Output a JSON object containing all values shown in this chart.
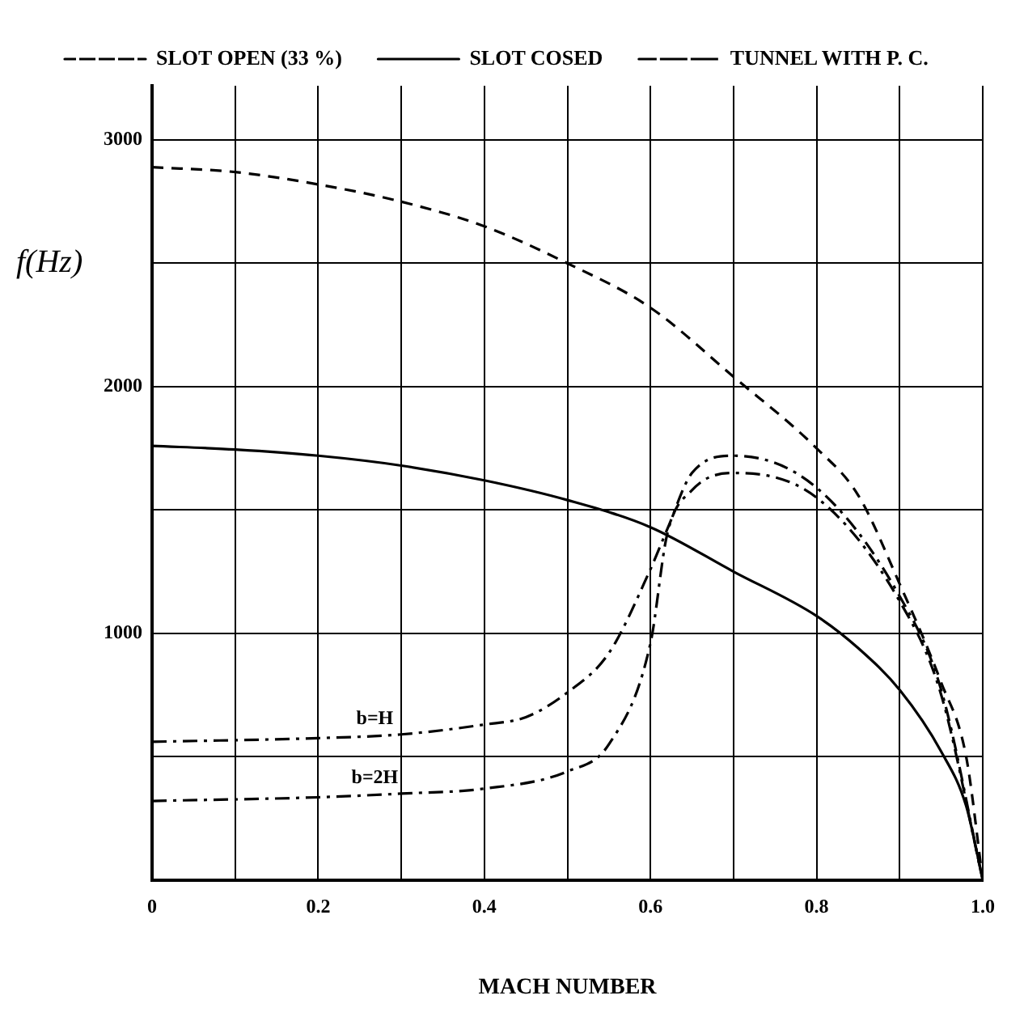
{
  "chart_data": {
    "type": "line",
    "xlabel": "MACH NUMBER",
    "ylabel": "f(Hz)",
    "x": [
      0,
      0.1,
      0.2,
      0.3,
      0.4,
      0.5,
      0.6,
      0.7,
      0.8,
      0.85,
      0.9,
      0.95,
      0.98,
      1.0
    ],
    "series": [
      {
        "name": "SLOT OPEN (33 %)",
        "color": "#000000",
        "line_style": "dashed",
        "values": [
          2890,
          2870,
          2820,
          2750,
          2650,
          2500,
          2320,
          2040,
          1750,
          1560,
          1200,
          800,
          500,
          0
        ]
      },
      {
        "name": "SLOT COSED",
        "color": "#000000",
        "line_style": "solid",
        "values": [
          1760,
          1745,
          1720,
          1680,
          1620,
          1540,
          1430,
          1250,
          1070,
          940,
          770,
          520,
          300,
          0
        ]
      },
      {
        "name": "TUNNEL WITH P. C.",
        "color": "#000000",
        "line_style": "dashdot",
        "x": [
          0,
          0.2,
          0.3,
          0.4,
          0.45,
          0.5,
          0.55,
          0.6,
          0.62,
          0.65,
          0.7,
          0.8,
          0.9,
          0.95,
          1.0
        ],
        "values": [
          560,
          575,
          590,
          630,
          660,
          760,
          920,
          1260,
          1420,
          1650,
          1720,
          1590,
          1150,
          770,
          0
        ]
      },
      {
        "color": "#000000",
        "line_style": "dashdot",
        "x": [
          0,
          0.2,
          0.3,
          0.4,
          0.5,
          0.55,
          0.6,
          0.62,
          0.65,
          0.7,
          0.8,
          0.9,
          0.95,
          1.0
        ],
        "values": [
          320,
          335,
          350,
          370,
          440,
          550,
          960,
          1400,
          1580,
          1650,
          1550,
          1130,
          750,
          0
        ]
      }
    ],
    "xlim": [
      0,
      1.0
    ],
    "xticks": [
      0,
      {
        "value": 0.1,
        "label": null
      },
      0.2,
      {
        "value": 0.3,
        "label": null
      },
      0.4,
      {
        "value": 0.5,
        "label": null
      },
      0.6,
      {
        "value": 0.7,
        "label": null
      },
      0.8,
      {
        "value": 0.9,
        "label": null
      },
      {
        "value": 1.0,
        "label": "1.0"
      }
    ],
    "ylim": [
      0,
      3220
    ],
    "yticks": [
      {
        "value": 0,
        "label": null
      },
      {
        "value": 500,
        "label": null
      },
      1000,
      {
        "value": 1500,
        "label": null
      },
      2000,
      {
        "value": 2500,
        "label": null
      },
      3000
    ],
    "annotations": [
      "b=H",
      "b=2H"
    ],
    "grid": true,
    "legend": "top left",
    "marker": "none"
  }
}
